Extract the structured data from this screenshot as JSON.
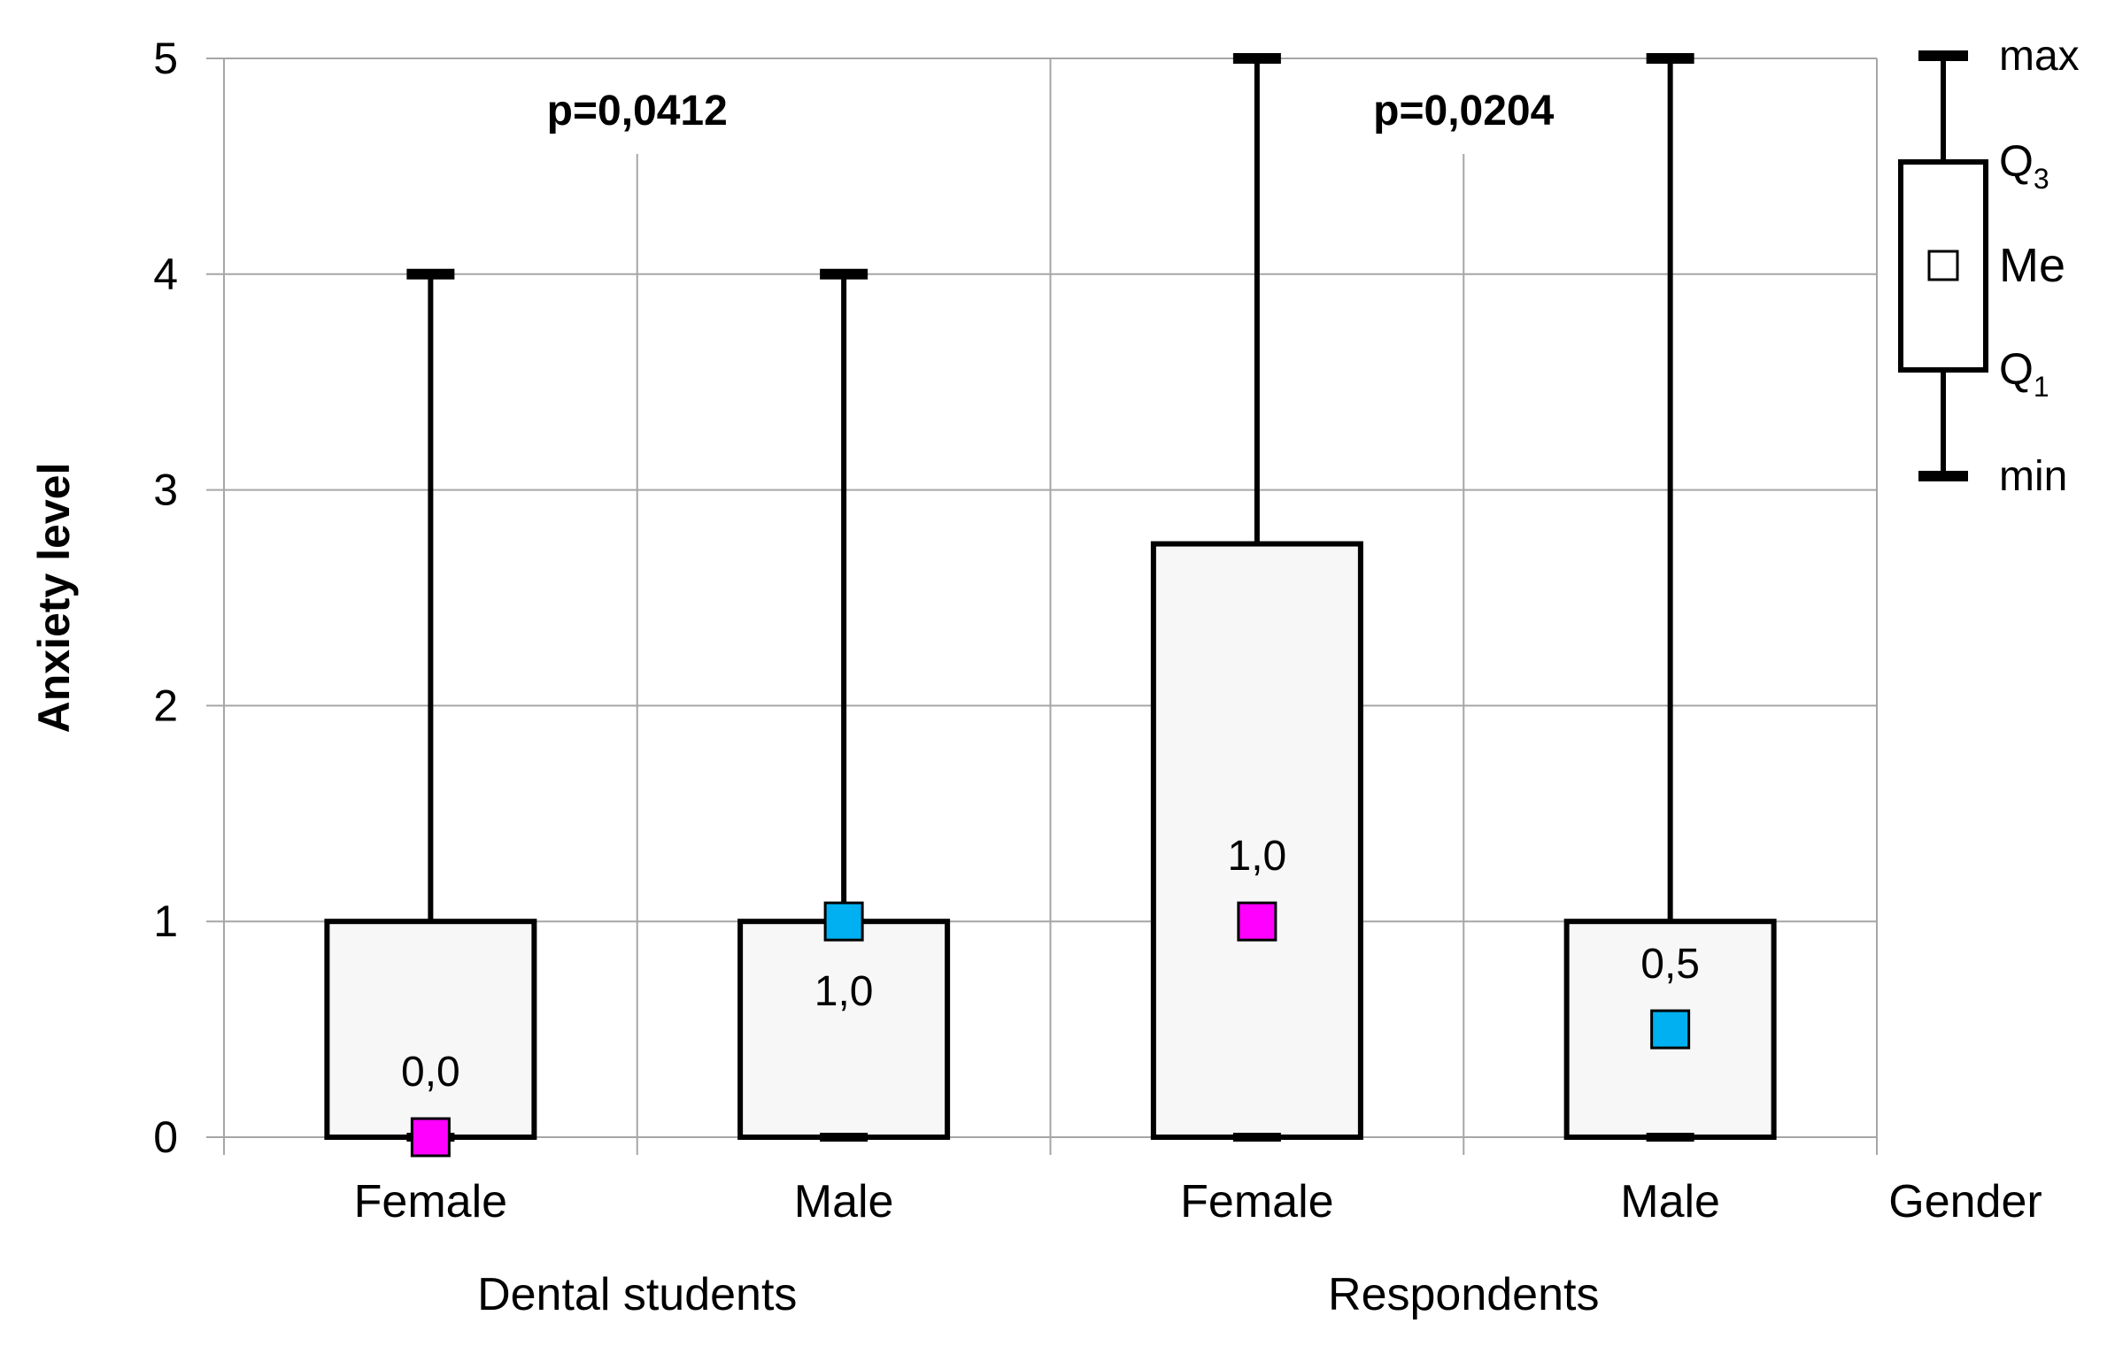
{
  "chart_data": {
    "type": "boxplot",
    "ylabel": "Anxiety level",
    "ylim": [
      0,
      5
    ],
    "yticks": [
      0,
      1,
      2,
      3,
      4,
      5
    ],
    "x_title": "Gender",
    "groups": [
      {
        "label": "Dental students",
        "p_value": "p=0,0412"
      },
      {
        "label": "Respondents",
        "p_value": "p=0,0204"
      }
    ],
    "boxes": [
      {
        "group": 0,
        "category": "Female",
        "min": 0,
        "q1": 0,
        "median": 0.0,
        "q3": 1,
        "max": 4,
        "median_label": "0,0",
        "median_color": "#ff00ff",
        "label_pos": "above"
      },
      {
        "group": 0,
        "category": "Male",
        "min": 0,
        "q1": 0,
        "median": 1.0,
        "q3": 1,
        "max": 4,
        "median_label": "1,0",
        "median_color": "#00b0f0",
        "label_pos": "below"
      },
      {
        "group": 1,
        "category": "Female",
        "min": 0,
        "q1": 0,
        "median": 1.0,
        "q3": 2.75,
        "max": 5,
        "median_label": "1,0",
        "median_color": "#ff00ff",
        "label_pos": "above"
      },
      {
        "group": 1,
        "category": "Male",
        "min": 0,
        "q1": 0,
        "median": 0.5,
        "q3": 1,
        "max": 5,
        "median_label": "0,5",
        "median_color": "#00b0f0",
        "label_pos": "above"
      }
    ],
    "legend": {
      "position": "right",
      "max": "max",
      "q3": "Q",
      "q3_sub": "3",
      "me": "Me",
      "q1": "Q",
      "q1_sub": "1",
      "min": "min"
    }
  }
}
